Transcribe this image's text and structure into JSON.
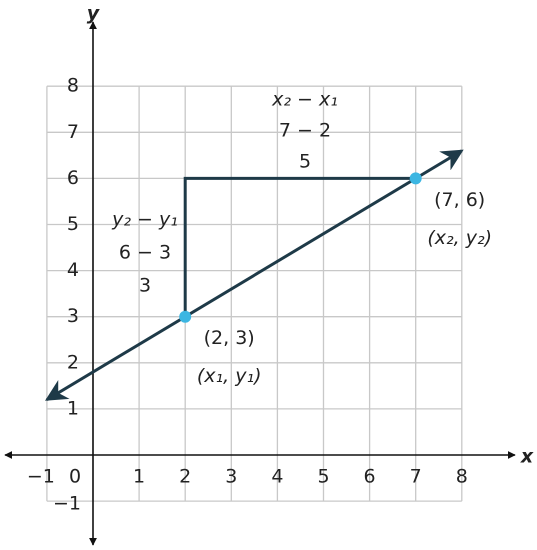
{
  "chart_data": {
    "type": "line",
    "xlabel": "x",
    "ylabel": "y",
    "xlim": [
      -1,
      8
    ],
    "ylim": [
      -1,
      8
    ],
    "xticks": [
      {
        "value": -1,
        "label": "−1"
      },
      0,
      1,
      2,
      3,
      4,
      5,
      6,
      7,
      8
    ],
    "yticks": [
      {
        "value": -1,
        "label": "−1"
      },
      1,
      2,
      3,
      4,
      5,
      6,
      7,
      8
    ],
    "grid": true,
    "series": [
      {
        "x": [
          -1,
          8
        ],
        "values": [
          1.2,
          6.6
        ],
        "color": "#1e3a48"
      }
    ],
    "triangle": {
      "x": [
        2,
        2,
        7
      ],
      "values": [
        3,
        6,
        6
      ],
      "color": "#1e3a48"
    },
    "points": {
      "x": [
        2,
        7
      ],
      "values": [
        3,
        6
      ],
      "color": "#3cb6e2",
      "labels": [
        "(2, 3)",
        "(7, 6)"
      ],
      "symbol_labels": [
        "(x₁, y₁)",
        "(x₂, y₂)"
      ]
    },
    "annotations": [
      {
        "lines": [
          "y₂ − y₁",
          "6 − 3",
          "3"
        ]
      },
      {
        "lines": [
          "x₂ − x₁",
          "7 − 2",
          "5"
        ]
      }
    ]
  }
}
